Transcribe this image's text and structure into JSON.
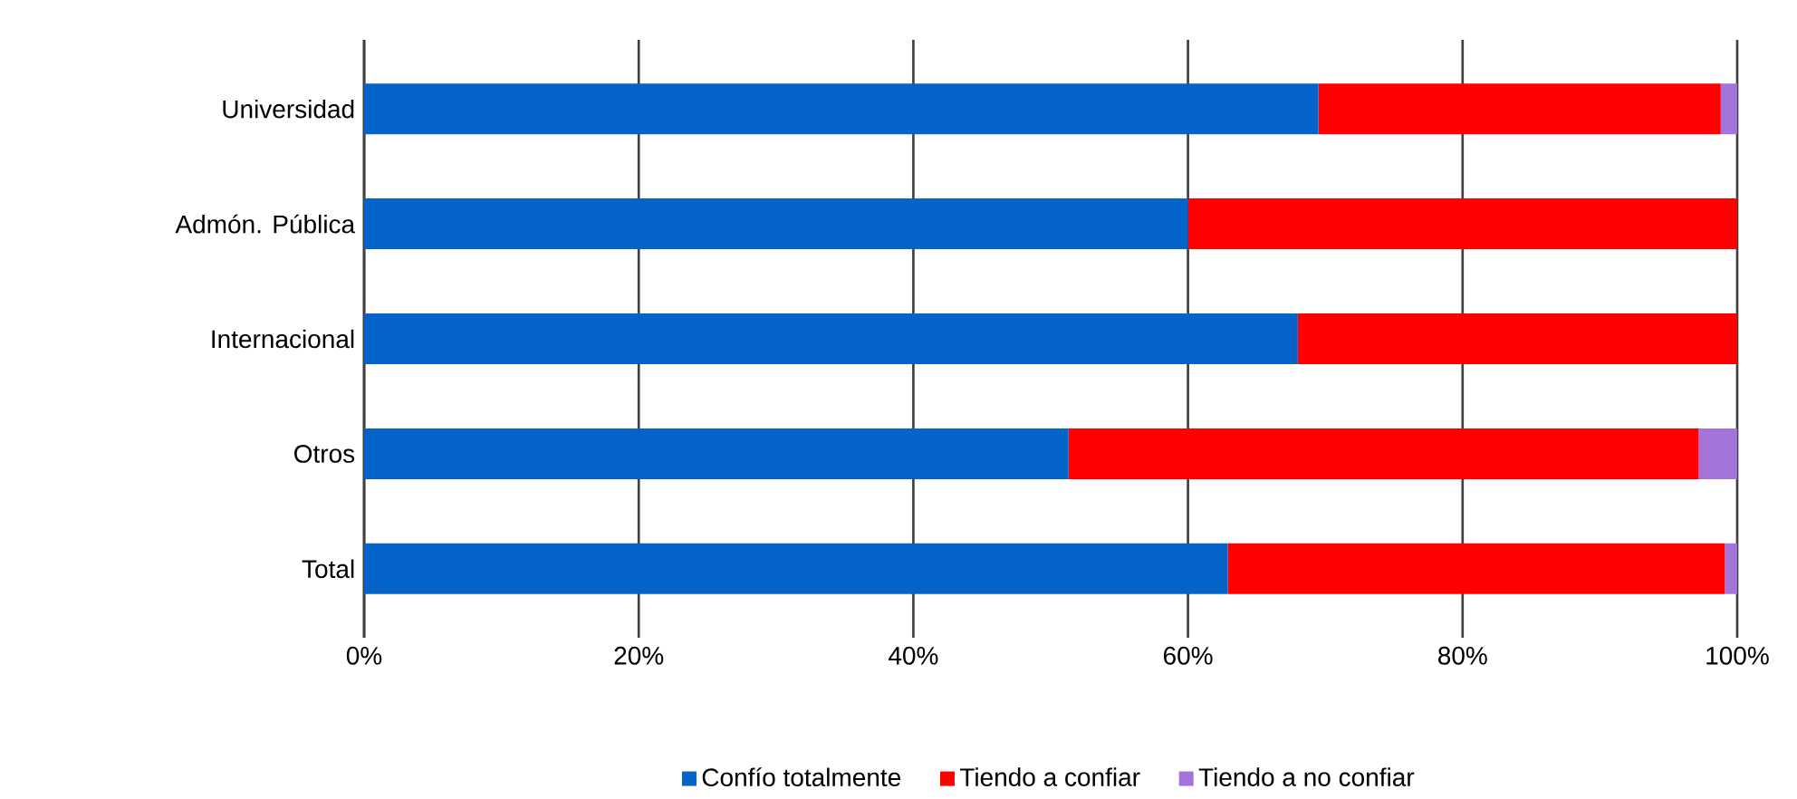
{
  "chart_data": {
    "type": "bar",
    "orientation": "horizontal",
    "stacked": true,
    "categories": [
      "Universidad",
      "Admón. Pública",
      "Internacional",
      "Otros",
      "Total"
    ],
    "series": [
      {
        "name": "Confío totalmente",
        "color": "#0563c9",
        "values": [
          69.5,
          60.0,
          68.0,
          51.3,
          62.9
        ]
      },
      {
        "name": "Tiendo a confiar",
        "color": "#ff0000",
        "values": [
          29.3,
          40.0,
          32.0,
          45.9,
          36.2
        ]
      },
      {
        "name": "Tiendo a no confiar",
        "color": "#a374d9",
        "values": [
          1.2,
          0,
          0,
          2.8,
          0.9
        ]
      }
    ],
    "xlim": [
      0,
      100
    ],
    "xticks": [
      {
        "value": 0,
        "label": "0%"
      },
      {
        "value": 20,
        "label": "20%"
      },
      {
        "value": 40,
        "label": "40%"
      },
      {
        "value": 60,
        "label": "60%"
      },
      {
        "value": 80,
        "label": "80%"
      },
      {
        "value": 100,
        "label": "100%"
      }
    ],
    "grid": "x",
    "legend": "bottom"
  }
}
